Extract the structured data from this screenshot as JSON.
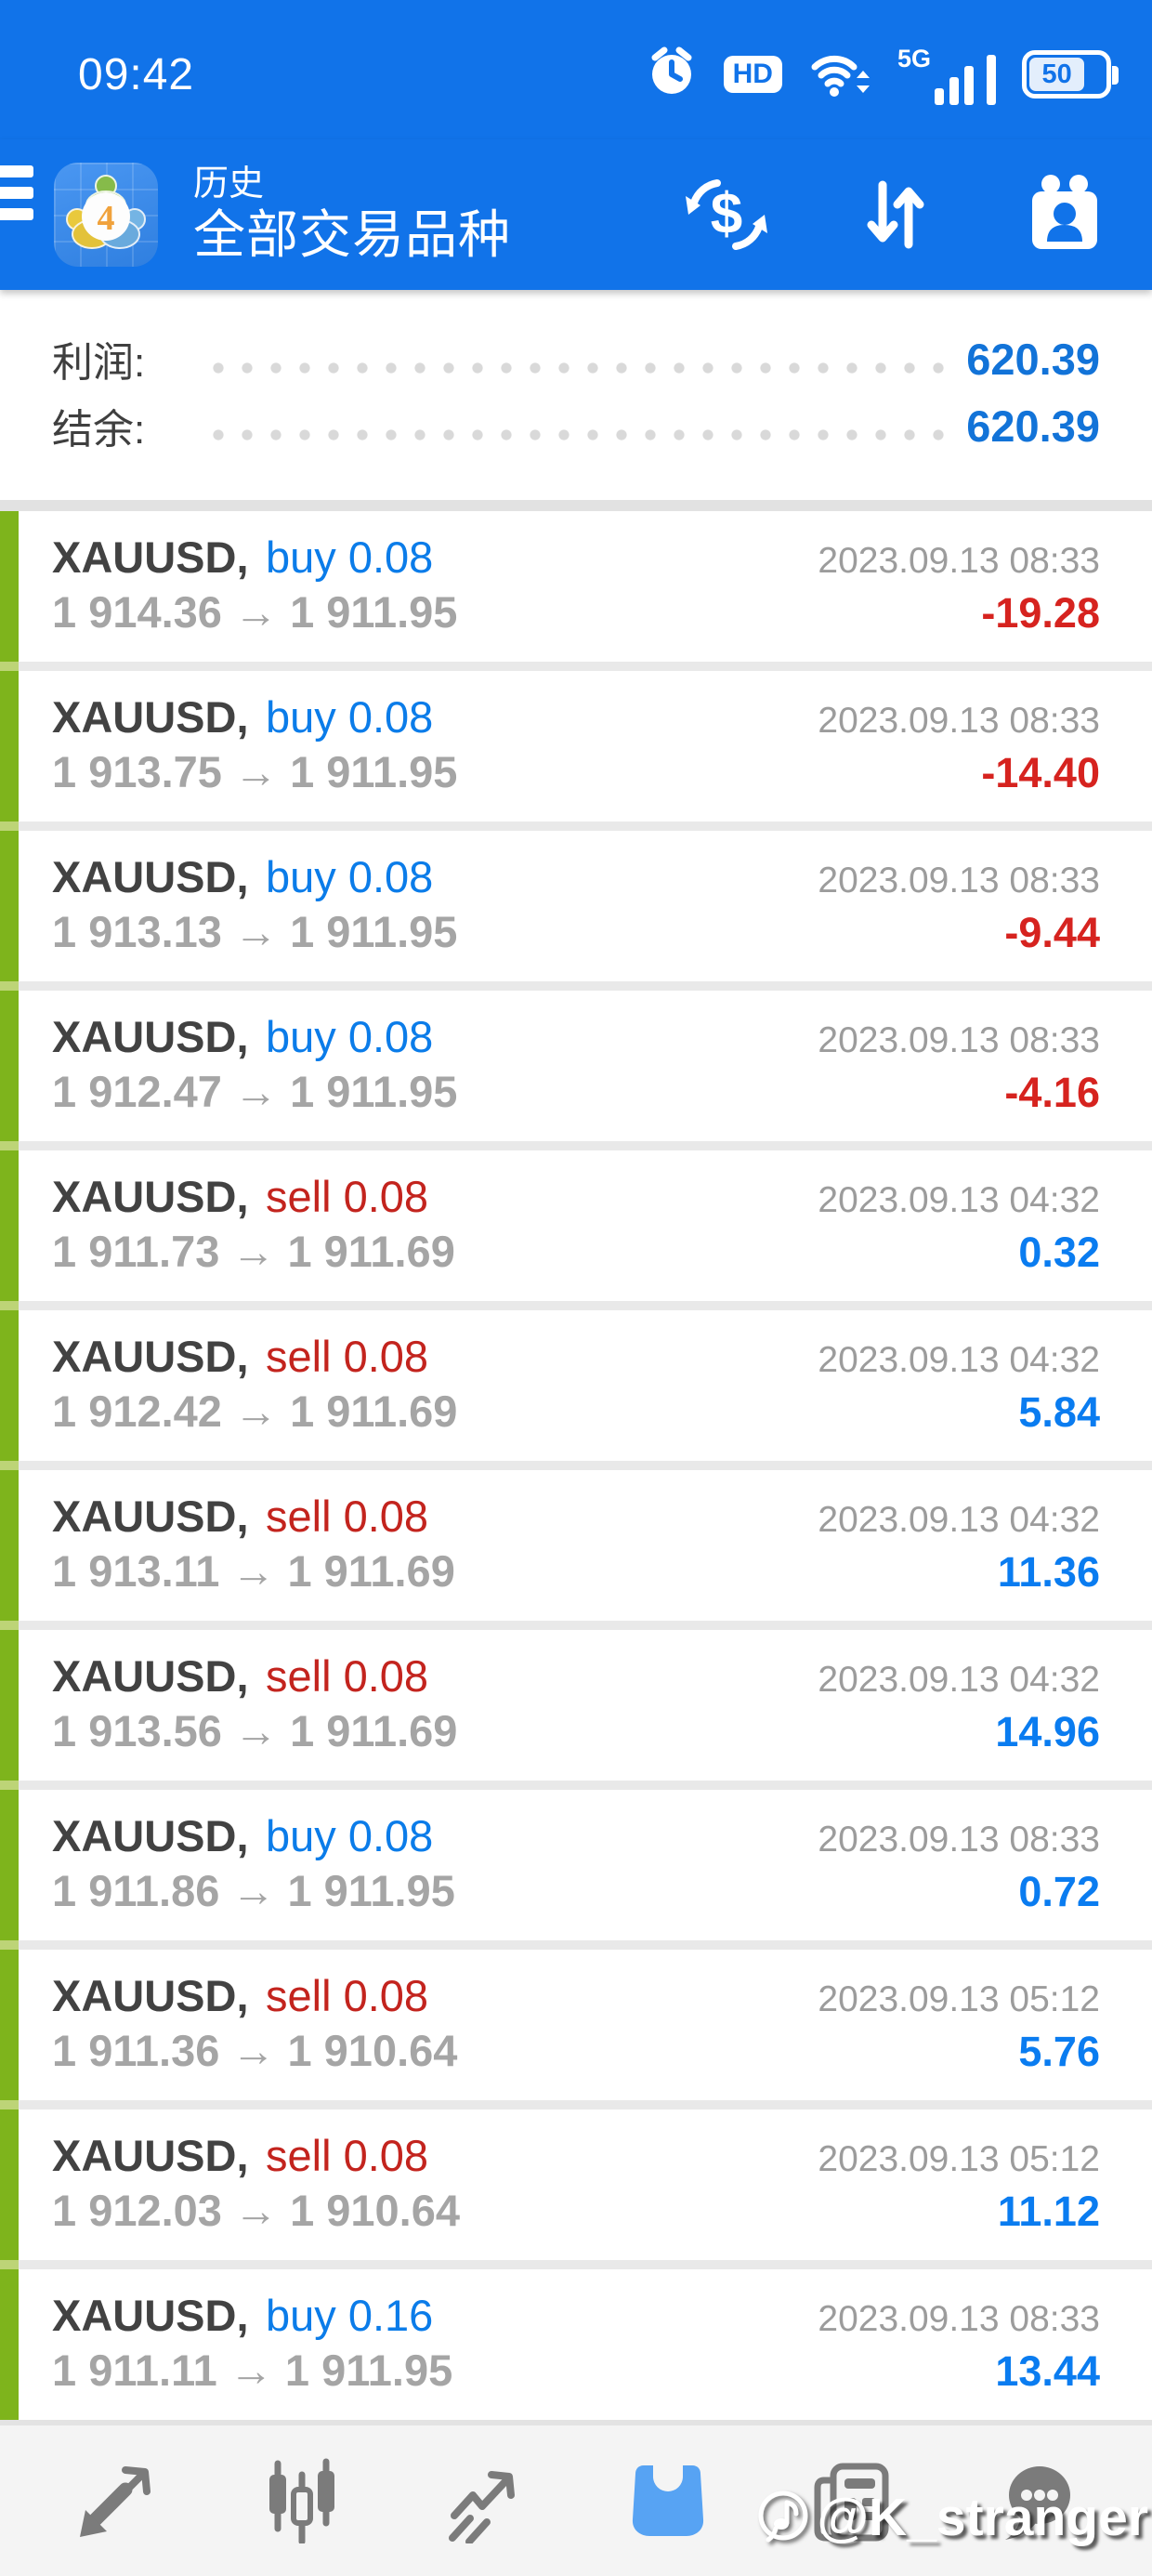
{
  "status_bar": {
    "time": "09:42",
    "hd_label": "HD",
    "network_label": "5G",
    "battery_level": "50"
  },
  "header": {
    "title_top": "历史",
    "title_main": "全部交易品种",
    "logo_badge": "4",
    "dollar_glyph": "$"
  },
  "summary": {
    "profit_label": "利润:",
    "profit_value": "620.39",
    "balance_label": "结余:",
    "balance_value": "620.39"
  },
  "list": {
    "price_arrow": "→"
  },
  "trades": [
    {
      "symbol": "XAUUSD,",
      "side": "buy",
      "volume": "0.08",
      "datetime": "2023.09.13 08:33",
      "open": "1 914.36",
      "close": "1 911.95",
      "profit": "-19.28"
    },
    {
      "symbol": "XAUUSD,",
      "side": "buy",
      "volume": "0.08",
      "datetime": "2023.09.13 08:33",
      "open": "1 913.75",
      "close": "1 911.95",
      "profit": "-14.40"
    },
    {
      "symbol": "XAUUSD,",
      "side": "buy",
      "volume": "0.08",
      "datetime": "2023.09.13 08:33",
      "open": "1 913.13",
      "close": "1 911.95",
      "profit": "-9.44"
    },
    {
      "symbol": "XAUUSD,",
      "side": "buy",
      "volume": "0.08",
      "datetime": "2023.09.13 08:33",
      "open": "1 912.47",
      "close": "1 911.95",
      "profit": "-4.16"
    },
    {
      "symbol": "XAUUSD,",
      "side": "sell",
      "volume": "0.08",
      "datetime": "2023.09.13 04:32",
      "open": "1 911.73",
      "close": "1 911.69",
      "profit": "0.32"
    },
    {
      "symbol": "XAUUSD,",
      "side": "sell",
      "volume": "0.08",
      "datetime": "2023.09.13 04:32",
      "open": "1 912.42",
      "close": "1 911.69",
      "profit": "5.84"
    },
    {
      "symbol": "XAUUSD,",
      "side": "sell",
      "volume": "0.08",
      "datetime": "2023.09.13 04:32",
      "open": "1 913.11",
      "close": "1 911.69",
      "profit": "11.36"
    },
    {
      "symbol": "XAUUSD,",
      "side": "sell",
      "volume": "0.08",
      "datetime": "2023.09.13 04:32",
      "open": "1 913.56",
      "close": "1 911.69",
      "profit": "14.96"
    },
    {
      "symbol": "XAUUSD,",
      "side": "buy",
      "volume": "0.08",
      "datetime": "2023.09.13 08:33",
      "open": "1 911.86",
      "close": "1 911.95",
      "profit": "0.72"
    },
    {
      "symbol": "XAUUSD,",
      "side": "sell",
      "volume": "0.08",
      "datetime": "2023.09.13 05:12",
      "open": "1 911.36",
      "close": "1 910.64",
      "profit": "5.76"
    },
    {
      "symbol": "XAUUSD,",
      "side": "sell",
      "volume": "0.08",
      "datetime": "2023.09.13 05:12",
      "open": "1 912.03",
      "close": "1 910.64",
      "profit": "11.12"
    },
    {
      "symbol": "XAUUSD,",
      "side": "buy",
      "volume": "0.16",
      "datetime": "2023.09.13 08:33",
      "open": "1 911.11",
      "close": "1 911.95",
      "profit": "13.44"
    }
  ],
  "toolbar": {
    "items": [
      "quotes",
      "charts",
      "trade",
      "history",
      "news",
      "messages"
    ],
    "active": "history"
  },
  "watermark": {
    "text": "@K_stranger",
    "note_glyph": "♪"
  },
  "colors": {
    "bar_blue": "#1173e9",
    "buy_blue": "#0b7ce9",
    "gain_blue": "#0a7cf0",
    "sell_red": "#c3241e",
    "loss_red": "#d6231f",
    "summary_blue": "#1273d8",
    "green_strip": "#7eb41c",
    "toolbar_icon_gray": "#7b7b7b",
    "active_blue": "#57a3f3"
  }
}
